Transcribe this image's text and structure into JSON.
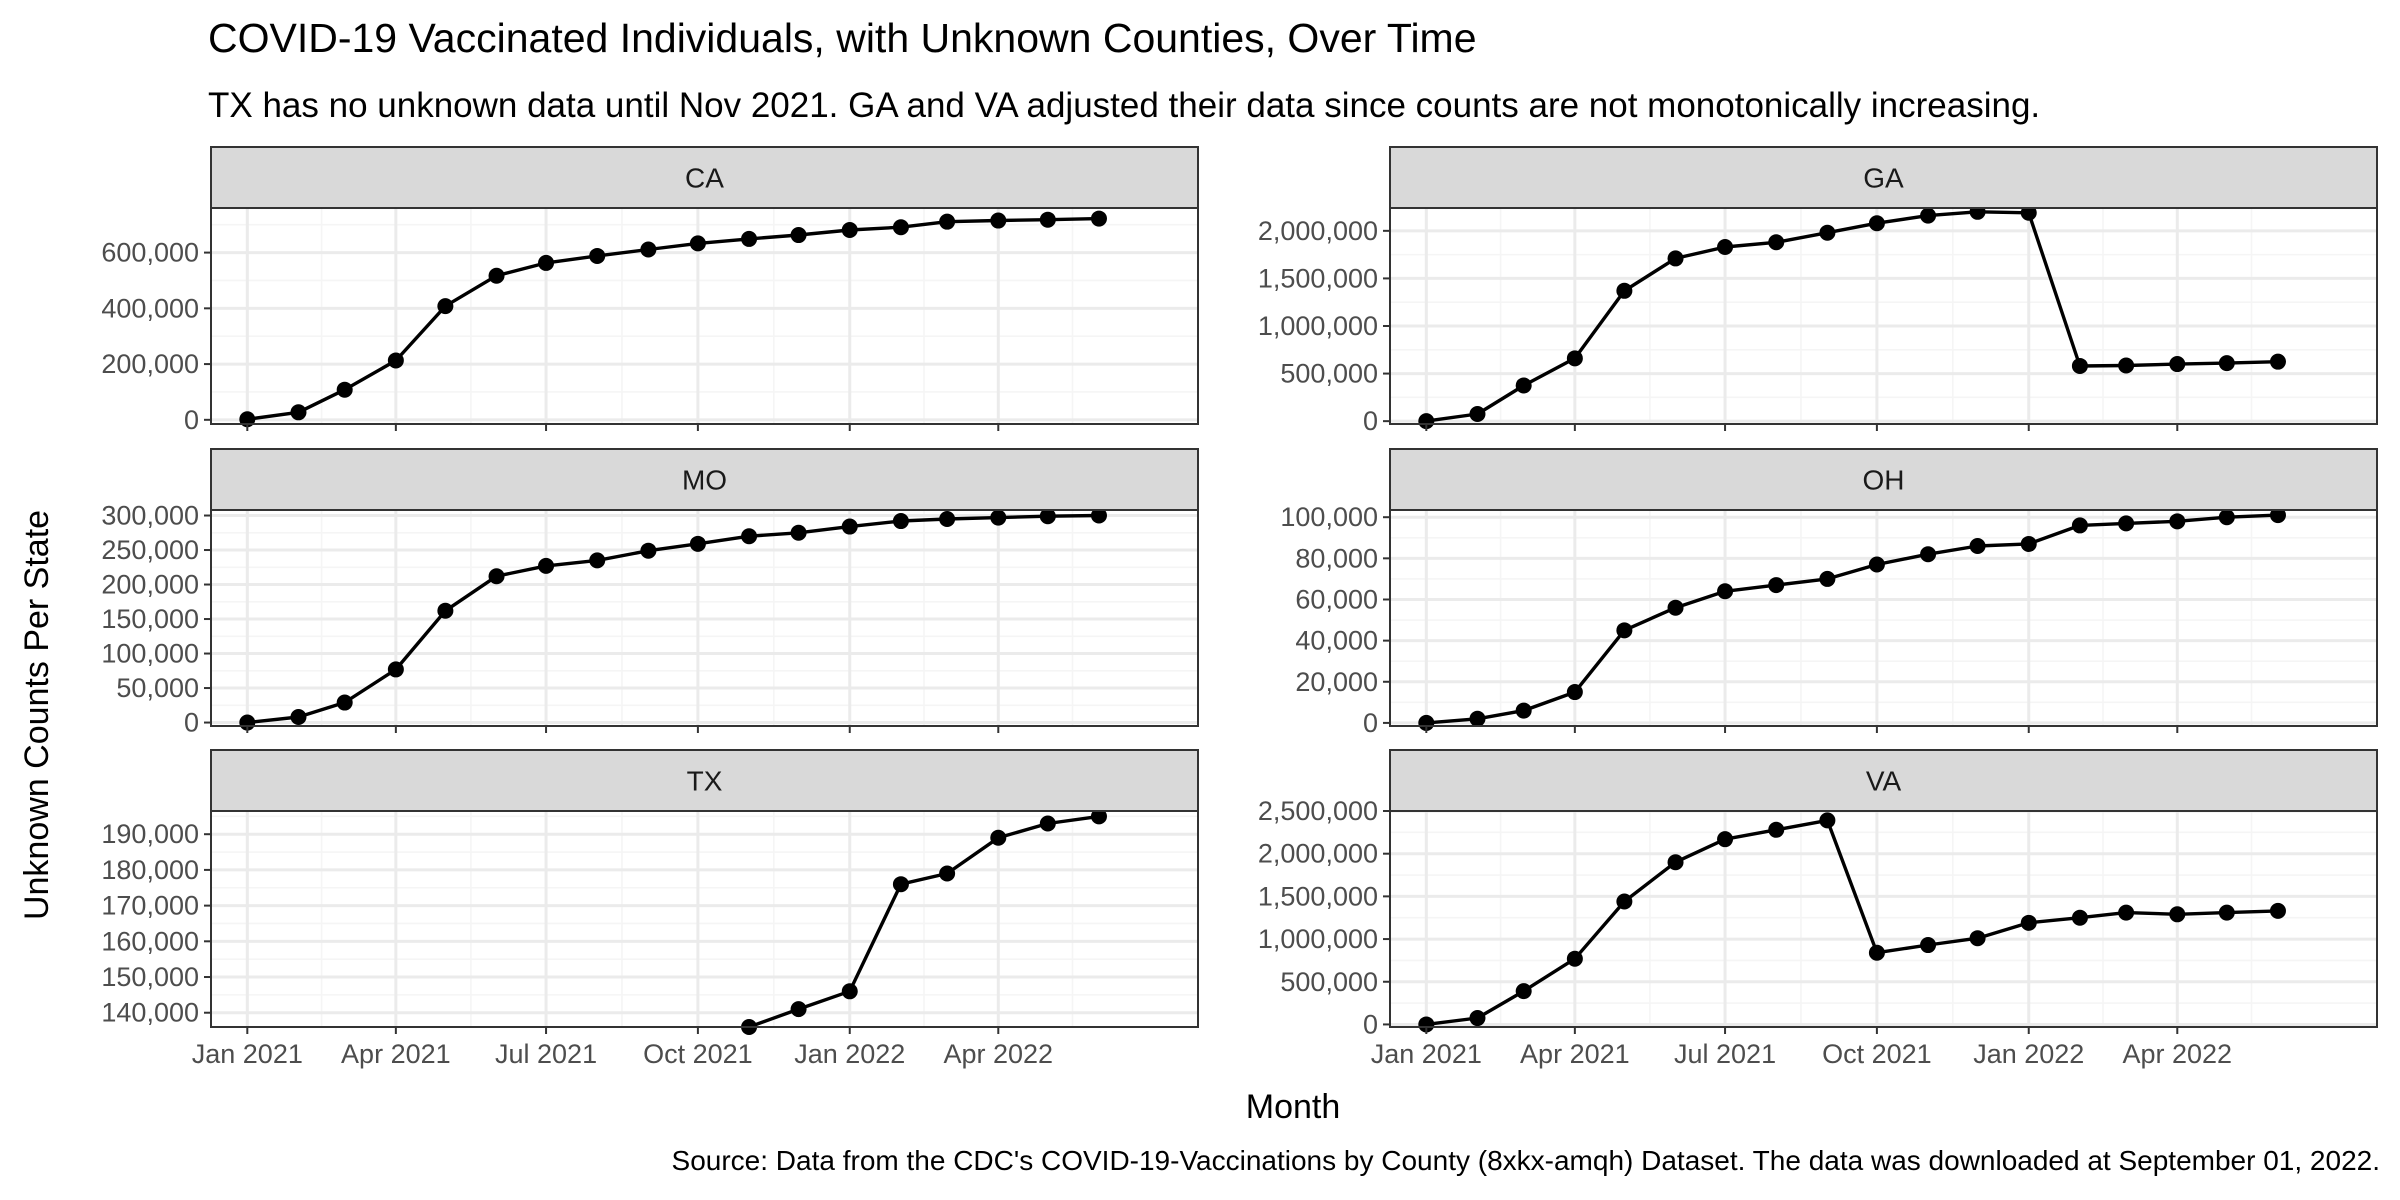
{
  "title": "COVID-19 Vaccinated Individuals, with Unknown Counties, Over Time",
  "subtitle": "TX has no unknown data until Nov 2021. GA and VA adjusted their data since counts are not monotonically increasing.",
  "caption": "Source: Data from the CDC's COVID-19-Vaccinations by County (8xkx-amqh) Dataset. The data was downloaded at September 01, 2022.",
  "chart_data": {
    "type": "line",
    "title": "COVID-19 Vaccinated Individuals, with Unknown Counties, Over Time",
    "subtitle": "TX has no unknown data until Nov 2021. GA and VA adjusted their data since counts are not monotonically increasing.",
    "xlabel": "Month",
    "ylabel": "Unknown Counts Per State",
    "x_ticks": [
      "Jan 2021",
      "Apr 2021",
      "Jul 2021",
      "Oct 2021",
      "Jan 2022",
      "Apr 2022"
    ],
    "x": [
      "2021-01",
      "2021-02",
      "2021-03",
      "2021-04",
      "2021-05",
      "2021-06",
      "2021-07",
      "2021-08",
      "2021-09",
      "2021-10",
      "2021-11",
      "2021-12",
      "2022-01",
      "2022-02",
      "2022-03",
      "2022-04",
      "2022-05",
      "2022-06",
      "2022-07"
    ],
    "xlim": [
      "2020-12-10",
      "2022-07-31"
    ],
    "grid": true,
    "facets": [
      {
        "name": "CA",
        "ylim": [
          -15000,
          760000
        ],
        "y_ticks": [
          0,
          200000,
          400000,
          600000
        ],
        "y_tick_labels": [
          "0",
          "200,000",
          "400,000",
          "600,000"
        ],
        "values": [
          2000,
          27000,
          108000,
          213000,
          408000,
          517000,
          563000,
          588000,
          611000,
          633000,
          649000,
          663000,
          681000,
          691000,
          711000,
          715000,
          718000,
          722000,
          null
        ]
      },
      {
        "name": "GA",
        "ylim": [
          -30000,
          2240000
        ],
        "y_ticks": [
          0,
          500000,
          1000000,
          1500000,
          2000000
        ],
        "y_tick_labels": [
          "0",
          "500,000",
          "1,000,000",
          "1,500,000",
          "2,000,000"
        ],
        "values": [
          0,
          75000,
          375000,
          660000,
          1370000,
          1710000,
          1830000,
          1880000,
          1980000,
          2080000,
          2160000,
          2200000,
          2190000,
          580000,
          585000,
          600000,
          610000,
          625000,
          null
        ]
      },
      {
        "name": "MO",
        "ylim": [
          -5000,
          308000
        ],
        "y_ticks": [
          0,
          50000,
          100000,
          150000,
          200000,
          250000,
          300000
        ],
        "y_tick_labels": [
          "0",
          "50,000",
          "100,000",
          "150,000",
          "200,000",
          "250,000",
          "300,000"
        ],
        "values": [
          0,
          8000,
          29000,
          77000,
          162000,
          212000,
          227000,
          235000,
          249000,
          259000,
          270000,
          275000,
          284000,
          292000,
          295000,
          297000,
          299000,
          300000,
          null
        ]
      },
      {
        "name": "OH",
        "ylim": [
          -1500,
          103500
        ],
        "y_ticks": [
          0,
          20000,
          40000,
          60000,
          80000,
          100000
        ],
        "y_tick_labels": [
          "0",
          "20,000",
          "40,000",
          "60,000",
          "80,000",
          "100,000"
        ],
        "values": [
          0,
          2000,
          6000,
          15000,
          45000,
          56000,
          64000,
          67000,
          70000,
          77000,
          82000,
          86000,
          87000,
          96000,
          97000,
          98000,
          100000,
          101000,
          null
        ]
      },
      {
        "name": "TX",
        "ylim": [
          136000,
          196500
        ],
        "y_ticks": [
          140000,
          150000,
          160000,
          170000,
          180000,
          190000
        ],
        "y_tick_labels": [
          "140,000",
          "150,000",
          "160,000",
          "170,000",
          "180,000",
          "190,000"
        ],
        "values": [
          null,
          null,
          null,
          null,
          null,
          null,
          null,
          null,
          null,
          null,
          136000,
          141000,
          146000,
          176000,
          179000,
          189000,
          193000,
          195000,
          null
        ]
      },
      {
        "name": "VA",
        "ylim": [
          -30000,
          2500000
        ],
        "y_ticks": [
          0,
          500000,
          1000000,
          1500000,
          2000000,
          2500000
        ],
        "y_tick_labels": [
          "0",
          "500,000",
          "1,000,000",
          "1,500,000",
          "2,000,000",
          "2,500,000"
        ],
        "values": [
          0,
          75000,
          390000,
          770000,
          1440000,
          1900000,
          2170000,
          2280000,
          2390000,
          840000,
          930000,
          1010000,
          1190000,
          1250000,
          1310000,
          1290000,
          1310000,
          1330000,
          null
        ]
      }
    ]
  },
  "colors": {
    "panel_border": "#333333",
    "strip_fill": "#d9d9d9",
    "grid_major": "#ebebeb",
    "grid_minor": "#f5f5f5",
    "line": "#000000",
    "point": "#000000",
    "tick_text": "#4d4d4d"
  }
}
